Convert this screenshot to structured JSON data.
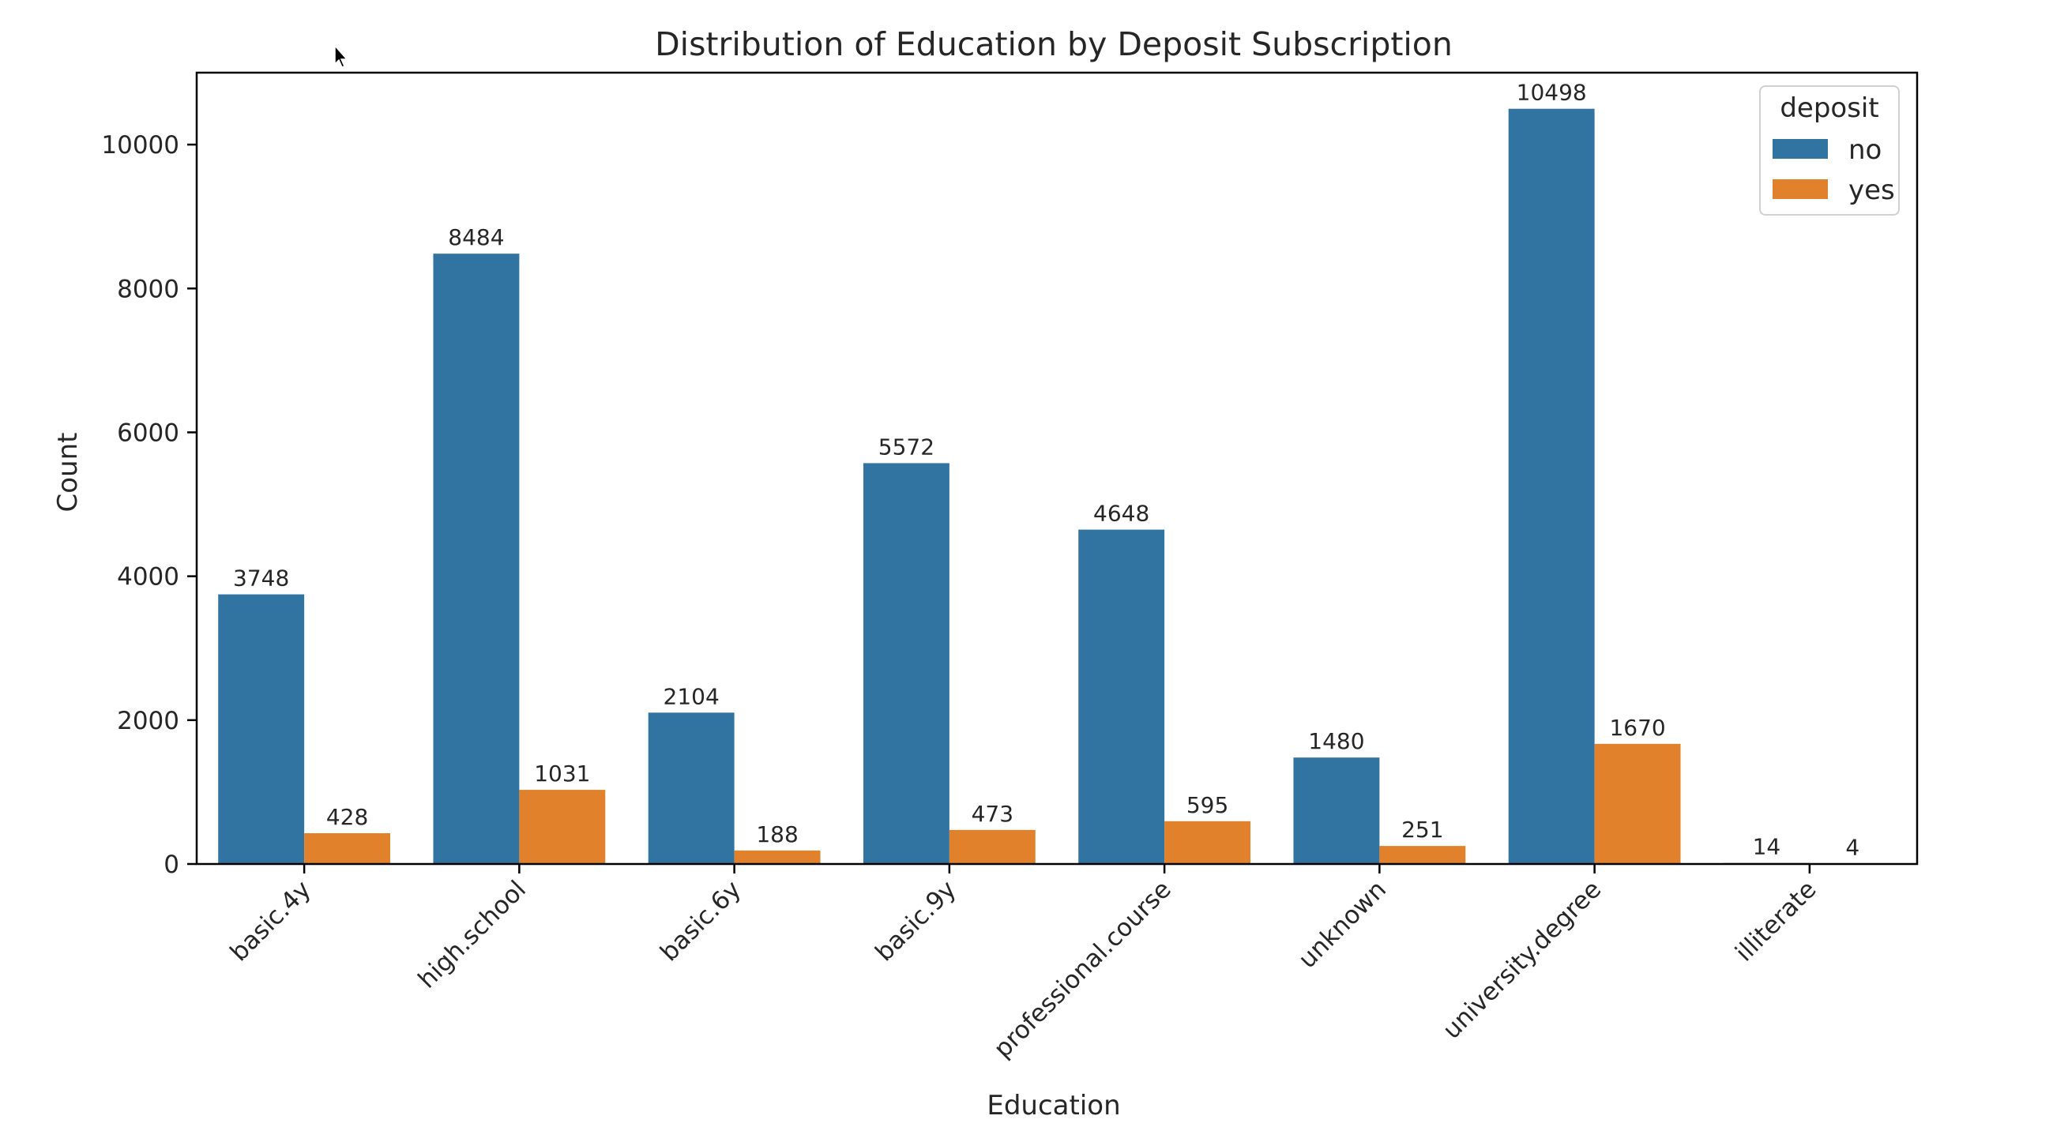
{
  "chart_data": {
    "type": "bar",
    "title": "Distribution of Education by Deposit Subscription",
    "xlabel": "Education",
    "ylabel": "Count",
    "categories": [
      "basic.4y",
      "high.school",
      "basic.6y",
      "basic.9y",
      "professional.course",
      "unknown",
      "university.degree",
      "illiterate"
    ],
    "series": [
      {
        "name": "no",
        "color": "#3274a1",
        "values": [
          3748,
          8484,
          2104,
          5572,
          4648,
          1480,
          10498,
          14
        ]
      },
      {
        "name": "yes",
        "color": "#e1812c",
        "values": [
          428,
          1031,
          188,
          473,
          595,
          251,
          1670,
          4
        ]
      }
    ],
    "ylim": [
      0,
      11000
    ],
    "yticks": [
      0,
      2000,
      4000,
      6000,
      8000,
      10000
    ],
    "legend": {
      "title": "deposit",
      "position": "top-right"
    },
    "grid": false
  }
}
